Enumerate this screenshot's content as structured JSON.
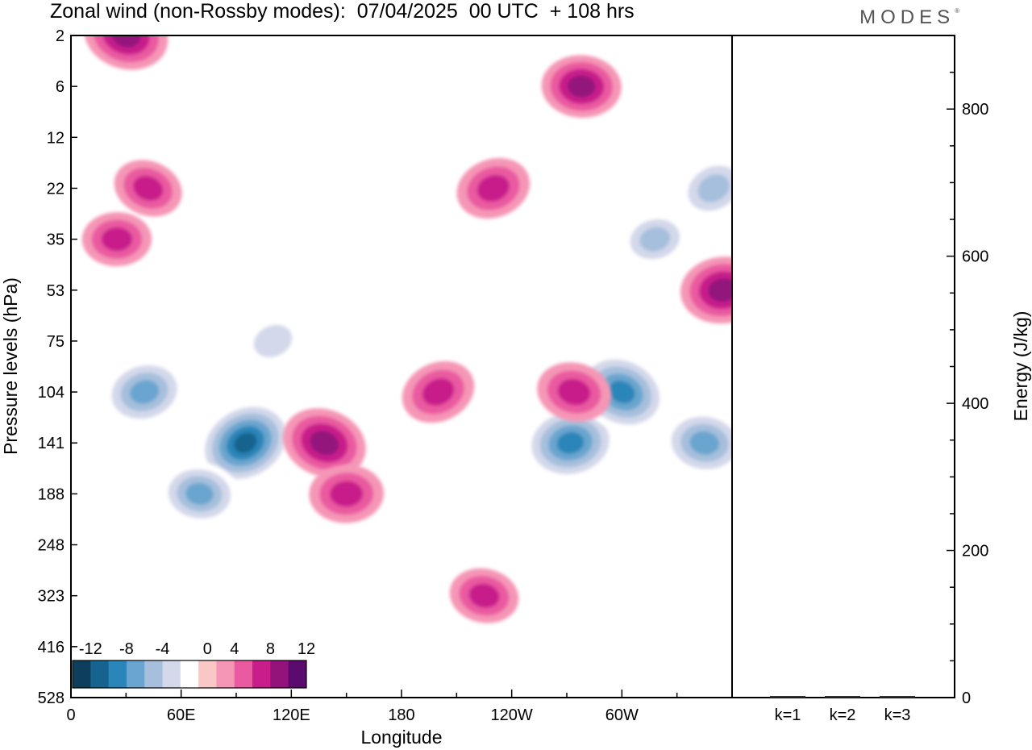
{
  "header": {
    "title": "Zonal wind (non-Rossby modes):  07/04/2025  00 UTC  + 108 hrs",
    "brand": "MODES",
    "brand_mark": "®"
  },
  "chart_data": [
    {
      "type": "heatmap",
      "xlabel": "Longitude",
      "ylabel": "Pressure levels (hPa)",
      "x_ticks": [
        "0",
        "60E",
        "120E",
        "180",
        "120W",
        "60W"
      ],
      "x_range_deg": [
        0,
        360
      ],
      "y_ticks": [
        "2",
        "6",
        "12",
        "22",
        "35",
        "53",
        "75",
        "104",
        "141",
        "188",
        "248",
        "323",
        "416",
        "528"
      ],
      "colorbar": {
        "labels": [
          "-12",
          "-8",
          "-4",
          "0",
          "4",
          "8",
          "12"
        ],
        "levels": [
          -14,
          -12,
          -10,
          -8,
          -6,
          -4,
          -2,
          2,
          4,
          6,
          8,
          10,
          12,
          14
        ],
        "colors": [
          "#0d3f5c",
          "#16638f",
          "#2a85b8",
          "#6aa5cf",
          "#a6bfdc",
          "#d3d8ea",
          "#ffffff",
          "#f9c7c5",
          "#f596b6",
          "#ea5aa0",
          "#c81d8b",
          "#93127b",
          "#5b0a6e"
        ]
      },
      "features": [
        {
          "lon": 95,
          "level": "141",
          "value": -12
        },
        {
          "lon": 70,
          "level": "188",
          "value": -8
        },
        {
          "lon": 40,
          "level": "104",
          "value": -9
        },
        {
          "lon": 138,
          "level": "141",
          "value": 9
        },
        {
          "lon": 150,
          "level": "188",
          "value": 7
        },
        {
          "lon": 200,
          "level": "104",
          "value": 7
        },
        {
          "lon": 225,
          "level": "323",
          "value": 6
        },
        {
          "lon": 272,
          "level": "141",
          "value": -11
        },
        {
          "lon": 300,
          "level": "104",
          "value": -11
        },
        {
          "lon": 278,
          "level": "6",
          "value": 8
        },
        {
          "lon": 230,
          "level": "22",
          "value": 7
        },
        {
          "lon": 30,
          "level": "2",
          "value": 9
        },
        {
          "lon": 355,
          "level": "53",
          "value": 9
        },
        {
          "lon": 350,
          "level": "22",
          "value": -7
        },
        {
          "lon": 345,
          "level": "141",
          "value": -9
        },
        {
          "lon": 318,
          "level": "35",
          "value": -6
        },
        {
          "lon": 42,
          "level": "22",
          "value": 6
        },
        {
          "lon": 25,
          "level": "35",
          "value": 6
        },
        {
          "lon": 110,
          "level": "75",
          "value": -5
        },
        {
          "lon": 274,
          "level": "104",
          "value": 7
        }
      ]
    },
    {
      "type": "bar",
      "categories": [
        "k=1",
        "k=2",
        "k=3"
      ],
      "values": [
        2,
        1.5,
        1.5
      ],
      "ylabel": "Energy (J/kg)",
      "ylim": [
        0,
        900
      ],
      "y_ticks": [
        "0",
        "200",
        "400",
        "600",
        "800"
      ]
    }
  ]
}
